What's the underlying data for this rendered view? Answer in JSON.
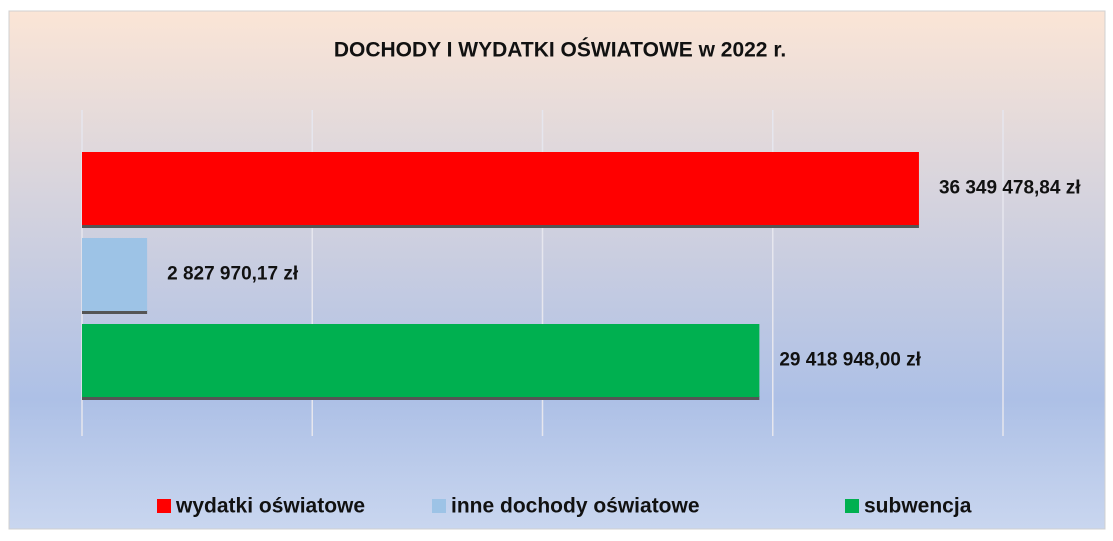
{
  "chart_data": {
    "type": "bar",
    "orientation": "horizontal",
    "title": "DOCHODY I WYDATKI OŚWIATOWE w 2022 r.",
    "series": [
      {
        "name": "wydatki oświatowe",
        "color": "#ff0000",
        "values": [
          36349478.84
        ],
        "value_labels": [
          "36 349 478,84 zł"
        ]
      },
      {
        "name": "inne dochody oświatowe",
        "color": "#9dc3e6",
        "values": [
          2827970.17
        ],
        "value_labels": [
          "2 827 970,17 zł"
        ]
      },
      {
        "name": "subwencja",
        "color": "#00b050",
        "values": [
          29418948.0
        ],
        "value_labels": [
          "29 418 948,00 zł"
        ]
      }
    ],
    "xlim": [
      0,
      40000000
    ],
    "xticks": [
      0,
      10000000,
      20000000,
      30000000,
      40000000
    ],
    "grid": true,
    "legend": "bottom"
  }
}
